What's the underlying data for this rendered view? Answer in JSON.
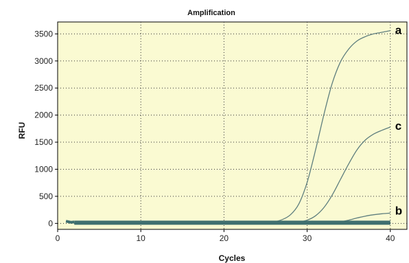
{
  "chart_data": {
    "type": "line",
    "title": "Amplification",
    "xlabel": "Cycles",
    "ylabel": "RFU",
    "xlim": [
      0,
      42
    ],
    "ylim": [
      -110,
      3720
    ],
    "x_ticks": [
      0,
      10,
      20,
      30,
      40
    ],
    "y_ticks": [
      0,
      500,
      1000,
      1500,
      2000,
      2500,
      3000,
      3500
    ],
    "grid": true,
    "background": "#fafad2",
    "line_color": "#5e7e7e",
    "baseline_color": "#3f6f6f",
    "series": [
      {
        "name": "a",
        "x": [
          1,
          2,
          3,
          5,
          10,
          15,
          20,
          24,
          25,
          26,
          27,
          28,
          29,
          30,
          31,
          32,
          33,
          34,
          35,
          36,
          37,
          38,
          39,
          40
        ],
        "y": [
          40,
          10,
          5,
          5,
          5,
          5,
          5,
          8,
          14,
          30,
          70,
          160,
          360,
          760,
          1350,
          2000,
          2580,
          2980,
          3220,
          3370,
          3450,
          3500,
          3530,
          3560
        ]
      },
      {
        "name": "c",
        "x": [
          1,
          2,
          3,
          5,
          10,
          15,
          20,
          25,
          28,
          29,
          30,
          31,
          32,
          33,
          34,
          35,
          36,
          37,
          38,
          39,
          40
        ],
        "y": [
          35,
          8,
          5,
          5,
          5,
          5,
          5,
          5,
          10,
          25,
          60,
          140,
          290,
          520,
          810,
          1100,
          1360,
          1540,
          1650,
          1720,
          1780
        ]
      },
      {
        "name": "b",
        "x": [
          1,
          2,
          3,
          5,
          10,
          15,
          20,
          25,
          30,
          32,
          33,
          34,
          35,
          36,
          37,
          38,
          39,
          40
        ],
        "y": [
          30,
          8,
          5,
          5,
          5,
          5,
          5,
          5,
          8,
          12,
          18,
          30,
          60,
          100,
          135,
          160,
          178,
          190
        ]
      }
    ]
  }
}
